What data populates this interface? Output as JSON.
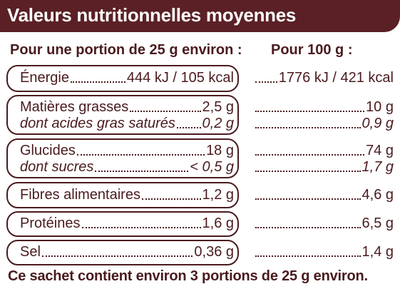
{
  "header": {
    "title": "Valeurs nutritionnelles moyennes"
  },
  "columns": {
    "left": "Pour une portion de 25 g environ :",
    "right": "Pour 100 g :"
  },
  "rows": [
    {
      "label": "Énergie",
      "portion": "444 kJ / 105 kcal",
      "per100": "1776 kJ / 421 kcal",
      "italic": false
    },
    {
      "label": "Matières grasses",
      "portion": "2,5 g",
      "per100": "10 g",
      "italic": false
    },
    {
      "label": "dont acides gras saturés",
      "portion": "0,2 g",
      "per100": "0,9 g",
      "italic": true
    },
    {
      "label": "Glucides",
      "portion": "18 g",
      "per100": "74 g",
      "italic": false
    },
    {
      "label": "dont sucres",
      "portion": "< 0,5 g",
      "per100": "1,7 g",
      "italic": true
    },
    {
      "label": "Fibres alimentaires",
      "portion": "1,2 g",
      "per100": "4,6 g",
      "italic": false
    },
    {
      "label": "Protéines",
      "portion": "1,6 g",
      "per100": "6,5 g",
      "italic": false
    },
    {
      "label": "Sel",
      "portion": "0,36 g",
      "per100": "1,4 g",
      "italic": false
    }
  ],
  "footer": "Ce sachet contient environ 3 portions de 25 g environ.",
  "colors": {
    "brand": "#5a2025",
    "text": "#4a1b1e"
  }
}
